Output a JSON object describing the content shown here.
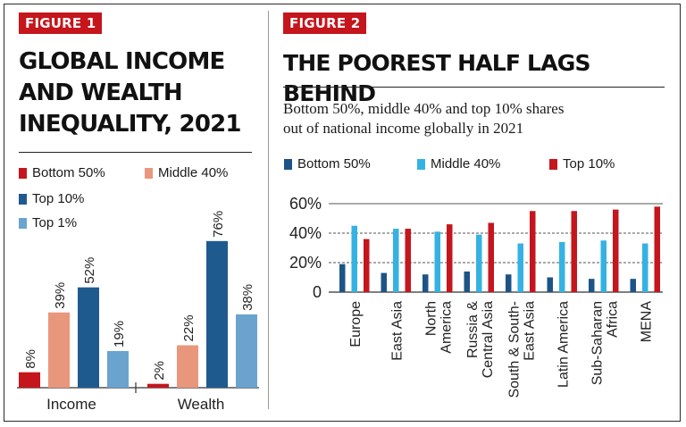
{
  "colors": {
    "bottom50": "#c4161c",
    "middle40_fig1": "#e9977c",
    "top10_fig1": "#1f5a8e",
    "top1": "#6ba3cf",
    "bottom50_fig2": "#1d5486",
    "middle40_fig2": "#35b2e4",
    "top10_fig2": "#c4161c"
  },
  "figure1": {
    "badge": "FIGURE 1",
    "title_lines": [
      "GLOBAL INCOME",
      "AND WEALTH",
      "INEQUALITY, 2021"
    ],
    "legend": [
      "Bottom 50%",
      "Middle 40%",
      "Top 10%",
      "Top 1%"
    ]
  },
  "figure2": {
    "badge": "FIGURE 2",
    "title": "THE POOREST HALF LAGS BEHIND",
    "subtitle_lines": [
      "Bottom 50%, middle 40% and top 10% shares",
      "out of national income globally in 2021"
    ],
    "legend": [
      "Bottom 50%",
      "Middle 40%",
      "Top 10%"
    ]
  },
  "chart_data": [
    {
      "type": "bar",
      "categories": [
        "Income",
        "Wealth"
      ],
      "series": [
        {
          "name": "Bottom 50%",
          "values": [
            8,
            2
          ],
          "labels": [
            "8%",
            "2%"
          ]
        },
        {
          "name": "Middle 40%",
          "values": [
            39,
            22
          ],
          "labels": [
            "39%",
            "22%"
          ]
        },
        {
          "name": "Top 10%",
          "values": [
            52,
            76
          ],
          "labels": [
            "52%",
            "76%"
          ]
        },
        {
          "name": "Top 1%",
          "values": [
            19,
            38
          ],
          "labels": [
            "19%",
            "38%"
          ]
        }
      ],
      "ylim": [
        0,
        80
      ],
      "grid": false,
      "legend": "top"
    },
    {
      "type": "bar",
      "categories": [
        "Europe",
        "East Asia",
        "North America",
        "Russia & Central Asia",
        "South & South-East Asia",
        "Latin America",
        "Sub-Saharan Africa",
        "MENA"
      ],
      "category_label_lines": [
        [
          "Europe"
        ],
        [
          "East Asia"
        ],
        [
          "North",
          "America"
        ],
        [
          "Russia &",
          "Central Asia"
        ],
        [
          "South & South-",
          "East Asia"
        ],
        [
          "Latin America"
        ],
        [
          "Sub-Saharan",
          "Africa"
        ],
        [
          "MENA"
        ]
      ],
      "series": [
        {
          "name": "Bottom 50%",
          "values": [
            19,
            13,
            12,
            14,
            12,
            10,
            9,
            9
          ]
        },
        {
          "name": "Middle 40%",
          "values": [
            45,
            43,
            41,
            39,
            33,
            34,
            35,
            33
          ]
        },
        {
          "name": "Top 10%",
          "values": [
            36,
            43,
            46,
            47,
            55,
            55,
            56,
            58
          ]
        }
      ],
      "yticks": [
        "0",
        "20%",
        "40%",
        "60%"
      ],
      "ylim": [
        0,
        60
      ],
      "grid": true,
      "legend": "top"
    }
  ]
}
